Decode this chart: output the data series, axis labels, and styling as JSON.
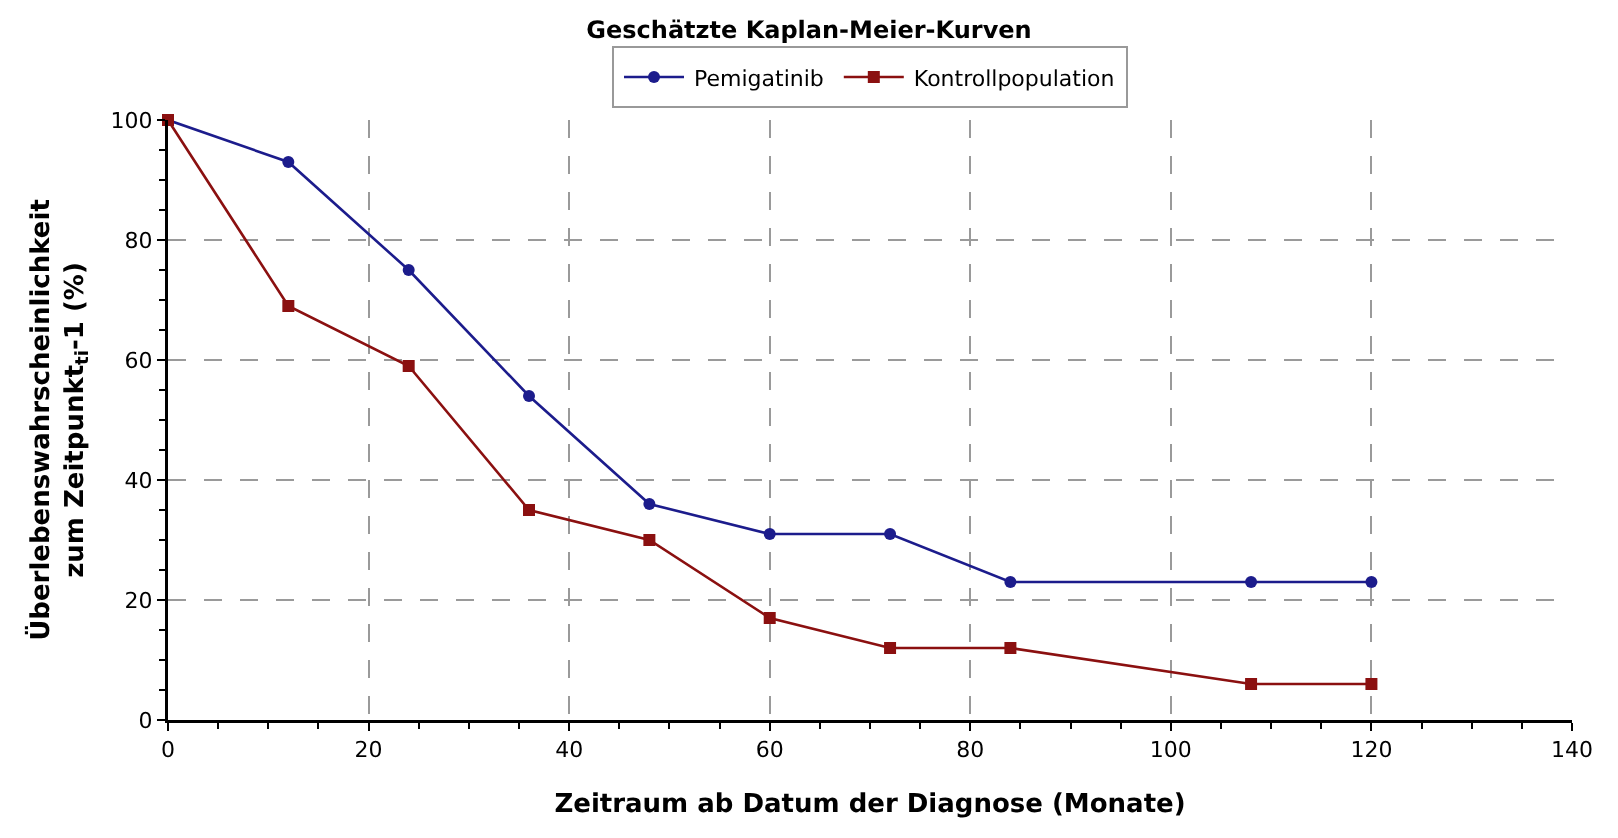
{
  "chart_data": {
    "type": "line",
    "title": "Geschätzte Kaplan-Meier-Kurven",
    "xlabel": "Zeitraum ab Datum der Diagnose (Monate)",
    "ylabel": "Überlebenswahrscheinlichkeit\nzum Zeitpunkt$_{ti}$-1 (%)",
    "x": [
      0,
      12,
      24,
      36,
      48,
      60,
      72,
      84,
      108,
      120
    ],
    "series": [
      {
        "name": "Pemigatinib",
        "color": "#1c1c8c",
        "marker": "circle",
        "values": [
          100,
          93,
          75,
          54,
          36,
          31,
          31,
          23,
          23,
          23
        ]
      },
      {
        "name": "Kontrollpopulation",
        "color": "#8b1010",
        "marker": "square",
        "values": [
          100,
          69,
          59,
          35,
          30,
          17,
          12,
          12,
          6,
          6
        ]
      }
    ],
    "xlim": [
      0,
      140
    ],
    "xticks": [
      0,
      20,
      40,
      60,
      80,
      100,
      120,
      140
    ],
    "ylim": [
      0,
      100
    ],
    "yticks": [
      0,
      20,
      40,
      60,
      80,
      100
    ],
    "grid": true,
    "legend": "top",
    "line_style": "solid"
  }
}
